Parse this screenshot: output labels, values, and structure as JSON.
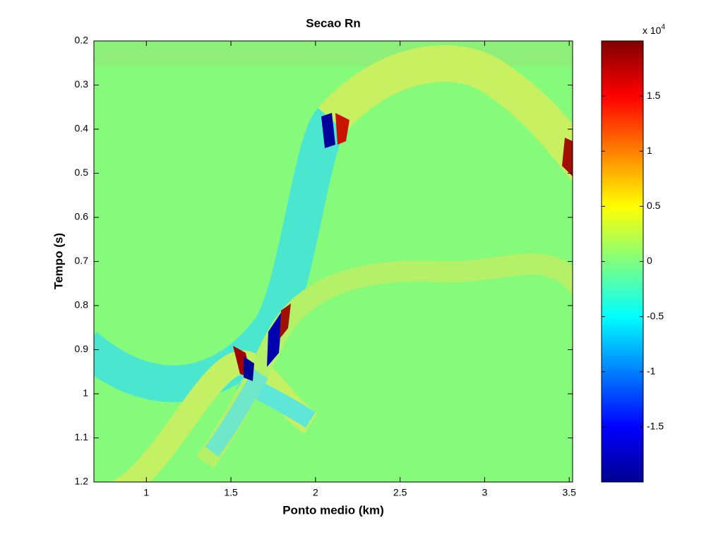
{
  "chart_data": {
    "type": "image",
    "title": "Secao Rn",
    "xlabel": "Ponto medio (km)",
    "ylabel": "Tempo (s)",
    "xlim": [
      0.69,
      3.52
    ],
    "xticks": [
      1,
      1.5,
      2,
      2.5,
      3,
      3.5
    ],
    "ylim": [
      0.2,
      1.2
    ],
    "yticks": [
      0.2,
      0.3,
      0.4,
      0.5,
      0.6,
      0.7,
      0.8,
      0.9,
      1,
      1.1,
      1.2
    ],
    "y_reversed": true,
    "colormap": "jet",
    "clim": [
      -2,
      2
    ],
    "cticks": [
      -1.5,
      -1,
      -0.5,
      0,
      0.5,
      1,
      1.5
    ],
    "colorbar_label": {
      "base": "x 10",
      "exponent": "4"
    }
  }
}
